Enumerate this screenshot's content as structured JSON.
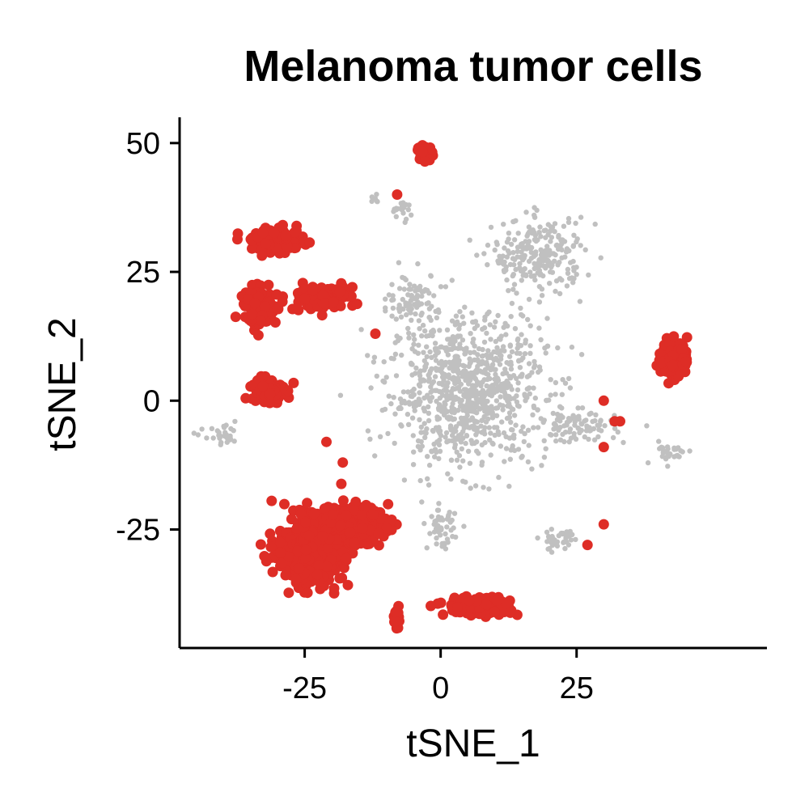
{
  "chart_data": {
    "type": "scatter",
    "title": "Melanoma tumor cells",
    "xlabel": "tSNE_1",
    "ylabel": "tSNE_2",
    "xlim": [
      -48,
      60
    ],
    "ylim": [
      -48,
      55
    ],
    "xticks": [
      -25,
      0,
      25
    ],
    "yticks": [
      -25,
      0,
      25,
      50
    ],
    "grid": false,
    "legend": "none",
    "colors": {
      "background_cells": "#c0c0c0",
      "tumor_cells": "#de2d26"
    },
    "series": [
      {
        "color": "#c0c0c0",
        "clusters": [
          {
            "center": [
              5,
              2
            ],
            "spread": [
              12,
              12
            ],
            "n": 900
          },
          {
            "center": [
              -5,
              20
            ],
            "spread": [
              4,
              4
            ],
            "n": 80
          },
          {
            "center": [
              18,
              28
            ],
            "spread": [
              7,
              6
            ],
            "n": 240
          },
          {
            "center": [
              0,
              -25
            ],
            "spread": [
              2,
              3
            ],
            "n": 50
          },
          {
            "center": [
              -7,
              37
            ],
            "spread": [
              2,
              2
            ],
            "n": 20
          },
          {
            "center": [
              -12,
              39
            ],
            "spread": [
              1,
              1
            ],
            "n": 6
          },
          {
            "center": [
              -40,
              -7
            ],
            "spread": [
              3,
              1.5
            ],
            "n": 30
          },
          {
            "center": [
              22,
              -27
            ],
            "spread": [
              3,
              2
            ],
            "n": 40
          },
          {
            "center": [
              42,
              -10
            ],
            "spread": [
              3,
              2
            ],
            "n": 30
          },
          {
            "center": [
              25,
              -5
            ],
            "spread": [
              6,
              2.5
            ],
            "n": 90
          }
        ],
        "points": []
      },
      {
        "color": "#de2d26",
        "clusters": [
          {
            "center": [
              -3,
              48
            ],
            "spread": [
              1.2,
              1.2
            ],
            "n": 45
          },
          {
            "center": [
              -30,
              31
            ],
            "spread": [
              4,
              2
            ],
            "n": 150
          },
          {
            "center": [
              -33,
              18
            ],
            "spread": [
              2.5,
              3
            ],
            "n": 130
          },
          {
            "center": [
              -22,
              20
            ],
            "spread": [
              5,
              2
            ],
            "n": 100
          },
          {
            "center": [
              -32,
              2
            ],
            "spread": [
              2.5,
              2
            ],
            "n": 140
          },
          {
            "center": [
              -24,
              -29
            ],
            "spread": [
              5,
              5
            ],
            "n": 500
          },
          {
            "center": [
              -17,
              -24
            ],
            "spread": [
              6,
              3
            ],
            "n": 200
          },
          {
            "center": [
              43,
              8
            ],
            "spread": [
              2,
              3
            ],
            "n": 150
          },
          {
            "center": [
              7,
              -40
            ],
            "spread": [
              5,
              1.5
            ],
            "n": 150
          },
          {
            "center": [
              -8,
              -42
            ],
            "spread": [
              0.5,
              1.5
            ],
            "n": 25
          }
        ],
        "points": [
          [
            -8,
            40
          ],
          [
            -12,
            13
          ],
          [
            -21,
            -8
          ],
          [
            -18,
            -12
          ],
          [
            30,
            0
          ],
          [
            33,
            -4
          ],
          [
            32,
            -4
          ],
          [
            30,
            -9
          ],
          [
            30,
            -24
          ],
          [
            27,
            -28
          ]
        ]
      }
    ]
  }
}
